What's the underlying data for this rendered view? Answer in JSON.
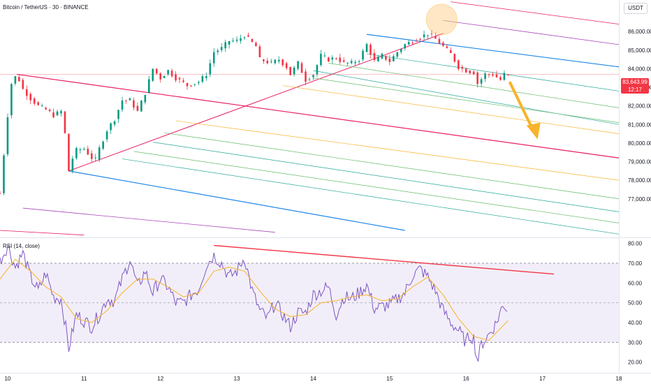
{
  "header": {
    "symbol_title": "Bitcoin / TetherUS · 30 · BINANCE",
    "currency": "USDT"
  },
  "price_badge": {
    "price": "83,643.99",
    "countdown": "12:17"
  },
  "rsi_panel": {
    "title": "RSI (14, close)"
  },
  "colors": {
    "candle_up": "#089981",
    "candle_down": "#f23645",
    "rsi_line": "#7e57c2",
    "rsi_ma": "#f7b32b",
    "rsi_band": "#ede7f6",
    "pitchfork_upper": "#e91e63",
    "pitchfork_lower": "#1e88e5",
    "arrow": "#f7b32b"
  },
  "chart_data": [
    {
      "type": "candlestick",
      "title": "Bitcoin / TetherUS · 30 · BINANCE",
      "ylim": [
        75000,
        87700
      ],
      "yticks": [
        "77,000.00",
        "78,000.00",
        "79,000.00",
        "80,000.00",
        "81,000.00",
        "82,000.00",
        "83,000.00",
        "84,000.00",
        "85,000.00",
        "86,000.00"
      ],
      "x_range": [
        9.9,
        18.0
      ],
      "xtick_labels": [
        "10",
        "11",
        "12",
        "13",
        "14",
        "15",
        "16",
        "17",
        "18"
      ],
      "current_price": 83643.99,
      "close_path": [
        [
          9.9,
          77300
        ],
        [
          10.0,
          81500
        ],
        [
          10.05,
          83200
        ],
        [
          10.12,
          83700
        ],
        [
          10.2,
          82900
        ],
        [
          10.3,
          82400
        ],
        [
          10.4,
          82000
        ],
        [
          10.5,
          81800
        ],
        [
          10.6,
          81500
        ],
        [
          10.7,
          81700
        ],
        [
          10.75,
          80500
        ],
        [
          10.8,
          78500
        ],
        [
          10.88,
          79600
        ],
        [
          11.0,
          79700
        ],
        [
          11.1,
          79200
        ],
        [
          11.15,
          79100
        ],
        [
          11.2,
          79700
        ],
        [
          11.3,
          80700
        ],
        [
          11.4,
          81300
        ],
        [
          11.5,
          82300
        ],
        [
          11.6,
          82300
        ],
        [
          11.7,
          81700
        ],
        [
          11.8,
          82700
        ],
        [
          11.9,
          84000
        ],
        [
          12.0,
          83500
        ],
        [
          12.1,
          83900
        ],
        [
          12.2,
          83500
        ],
        [
          12.35,
          83100
        ],
        [
          12.5,
          83300
        ],
        [
          12.6,
          83700
        ],
        [
          12.7,
          84900
        ],
        [
          12.8,
          85100
        ],
        [
          12.9,
          85500
        ],
        [
          13.0,
          85500
        ],
        [
          13.1,
          85800
        ],
        [
          13.25,
          85200
        ],
        [
          13.3,
          84500
        ],
        [
          13.45,
          84300
        ],
        [
          13.55,
          84500
        ],
        [
          13.65,
          84100
        ],
        [
          13.7,
          83700
        ],
        [
          13.8,
          84300
        ],
        [
          13.9,
          83400
        ],
        [
          14.0,
          83700
        ],
        [
          14.1,
          84700
        ],
        [
          14.2,
          84500
        ],
        [
          14.3,
          84600
        ],
        [
          14.4,
          84300
        ],
        [
          14.5,
          84300
        ],
        [
          14.6,
          84500
        ],
        [
          14.7,
          85300
        ],
        [
          14.8,
          84400
        ],
        [
          14.9,
          84700
        ],
        [
          15.0,
          84400
        ],
        [
          15.1,
          84900
        ],
        [
          15.2,
          85300
        ],
        [
          15.3,
          85500
        ],
        [
          15.4,
          85700
        ],
        [
          15.5,
          85900
        ],
        [
          15.6,
          85600
        ],
        [
          15.7,
          85200
        ],
        [
          15.8,
          84800
        ],
        [
          15.9,
          84100
        ],
        [
          16.0,
          83900
        ],
        [
          16.1,
          83800
        ],
        [
          16.15,
          83200
        ],
        [
          16.25,
          83700
        ],
        [
          16.35,
          83700
        ],
        [
          16.45,
          83400
        ],
        [
          16.5,
          83700
        ],
        [
          16.55,
          83640
        ]
      ]
    },
    {
      "type": "line",
      "title": "RSI (14, close)",
      "ylim": [
        16,
        82
      ],
      "yticks": [
        "20.00",
        "30.00",
        "40.00",
        "50.00",
        "60.00",
        "70.00",
        "80.00"
      ],
      "band": [
        30,
        70
      ],
      "midline": 50,
      "rsi_path": [
        [
          9.9,
          71
        ],
        [
          10.0,
          79
        ],
        [
          10.1,
          68
        ],
        [
          10.2,
          75
        ],
        [
          10.3,
          63
        ],
        [
          10.4,
          56
        ],
        [
          10.5,
          65
        ],
        [
          10.6,
          53
        ],
        [
          10.7,
          52
        ],
        [
          10.75,
          40
        ],
        [
          10.8,
          27
        ],
        [
          10.9,
          44
        ],
        [
          11.0,
          41
        ],
        [
          11.1,
          38
        ],
        [
          11.2,
          44
        ],
        [
          11.3,
          52
        ],
        [
          11.4,
          51
        ],
        [
          11.5,
          62
        ],
        [
          11.6,
          72
        ],
        [
          11.7,
          58
        ],
        [
          11.8,
          66
        ],
        [
          11.9,
          55
        ],
        [
          12.0,
          62
        ],
        [
          12.1,
          58
        ],
        [
          12.2,
          50
        ],
        [
          12.3,
          50
        ],
        [
          12.4,
          54
        ],
        [
          12.5,
          57
        ],
        [
          12.6,
          69
        ],
        [
          12.7,
          74
        ],
        [
          12.8,
          70
        ],
        [
          12.9,
          63
        ],
        [
          13.0,
          66
        ],
        [
          13.1,
          73
        ],
        [
          13.2,
          56
        ],
        [
          13.3,
          46
        ],
        [
          13.4,
          42
        ],
        [
          13.5,
          50
        ],
        [
          13.6,
          44
        ],
        [
          13.7,
          38
        ],
        [
          13.8,
          45
        ],
        [
          13.9,
          45
        ],
        [
          14.0,
          54
        ],
        [
          14.1,
          56
        ],
        [
          14.2,
          58
        ],
        [
          14.3,
          44
        ],
        [
          14.4,
          53
        ],
        [
          14.5,
          52
        ],
        [
          14.6,
          55
        ],
        [
          14.7,
          59
        ],
        [
          14.8,
          47
        ],
        [
          14.9,
          48
        ],
        [
          15.0,
          49
        ],
        [
          15.1,
          52
        ],
        [
          15.2,
          55
        ],
        [
          15.3,
          64
        ],
        [
          15.4,
          67
        ],
        [
          15.5,
          63
        ],
        [
          15.6,
          56
        ],
        [
          15.7,
          46
        ],
        [
          15.8,
          40
        ],
        [
          15.9,
          36
        ],
        [
          16.0,
          30
        ],
        [
          16.05,
          34
        ],
        [
          16.1,
          32
        ],
        [
          16.15,
          20
        ],
        [
          16.2,
          29
        ],
        [
          16.3,
          34
        ],
        [
          16.4,
          40
        ],
        [
          16.45,
          46
        ],
        [
          16.5,
          49
        ],
        [
          16.55,
          46
        ]
      ],
      "ma_path": [
        [
          9.9,
          62
        ],
        [
          10.1,
          72
        ],
        [
          10.3,
          66
        ],
        [
          10.5,
          58
        ],
        [
          10.7,
          53
        ],
        [
          10.9,
          42
        ],
        [
          11.1,
          40
        ],
        [
          11.3,
          46
        ],
        [
          11.5,
          55
        ],
        [
          11.7,
          62
        ],
        [
          11.9,
          62
        ],
        [
          12.1,
          58
        ],
        [
          12.3,
          53
        ],
        [
          12.5,
          55
        ],
        [
          12.7,
          66
        ],
        [
          12.9,
          68
        ],
        [
          13.1,
          66
        ],
        [
          13.3,
          56
        ],
        [
          13.5,
          47
        ],
        [
          13.7,
          43
        ],
        [
          13.9,
          44
        ],
        [
          14.1,
          50
        ],
        [
          14.3,
          51
        ],
        [
          14.5,
          53
        ],
        [
          14.7,
          54
        ],
        [
          14.9,
          51
        ],
        [
          15.1,
          52
        ],
        [
          15.3,
          58
        ],
        [
          15.5,
          63
        ],
        [
          15.7,
          54
        ],
        [
          15.9,
          42
        ],
        [
          16.1,
          33
        ],
        [
          16.3,
          31
        ],
        [
          16.5,
          39
        ],
        [
          16.55,
          41
        ]
      ]
    }
  ]
}
